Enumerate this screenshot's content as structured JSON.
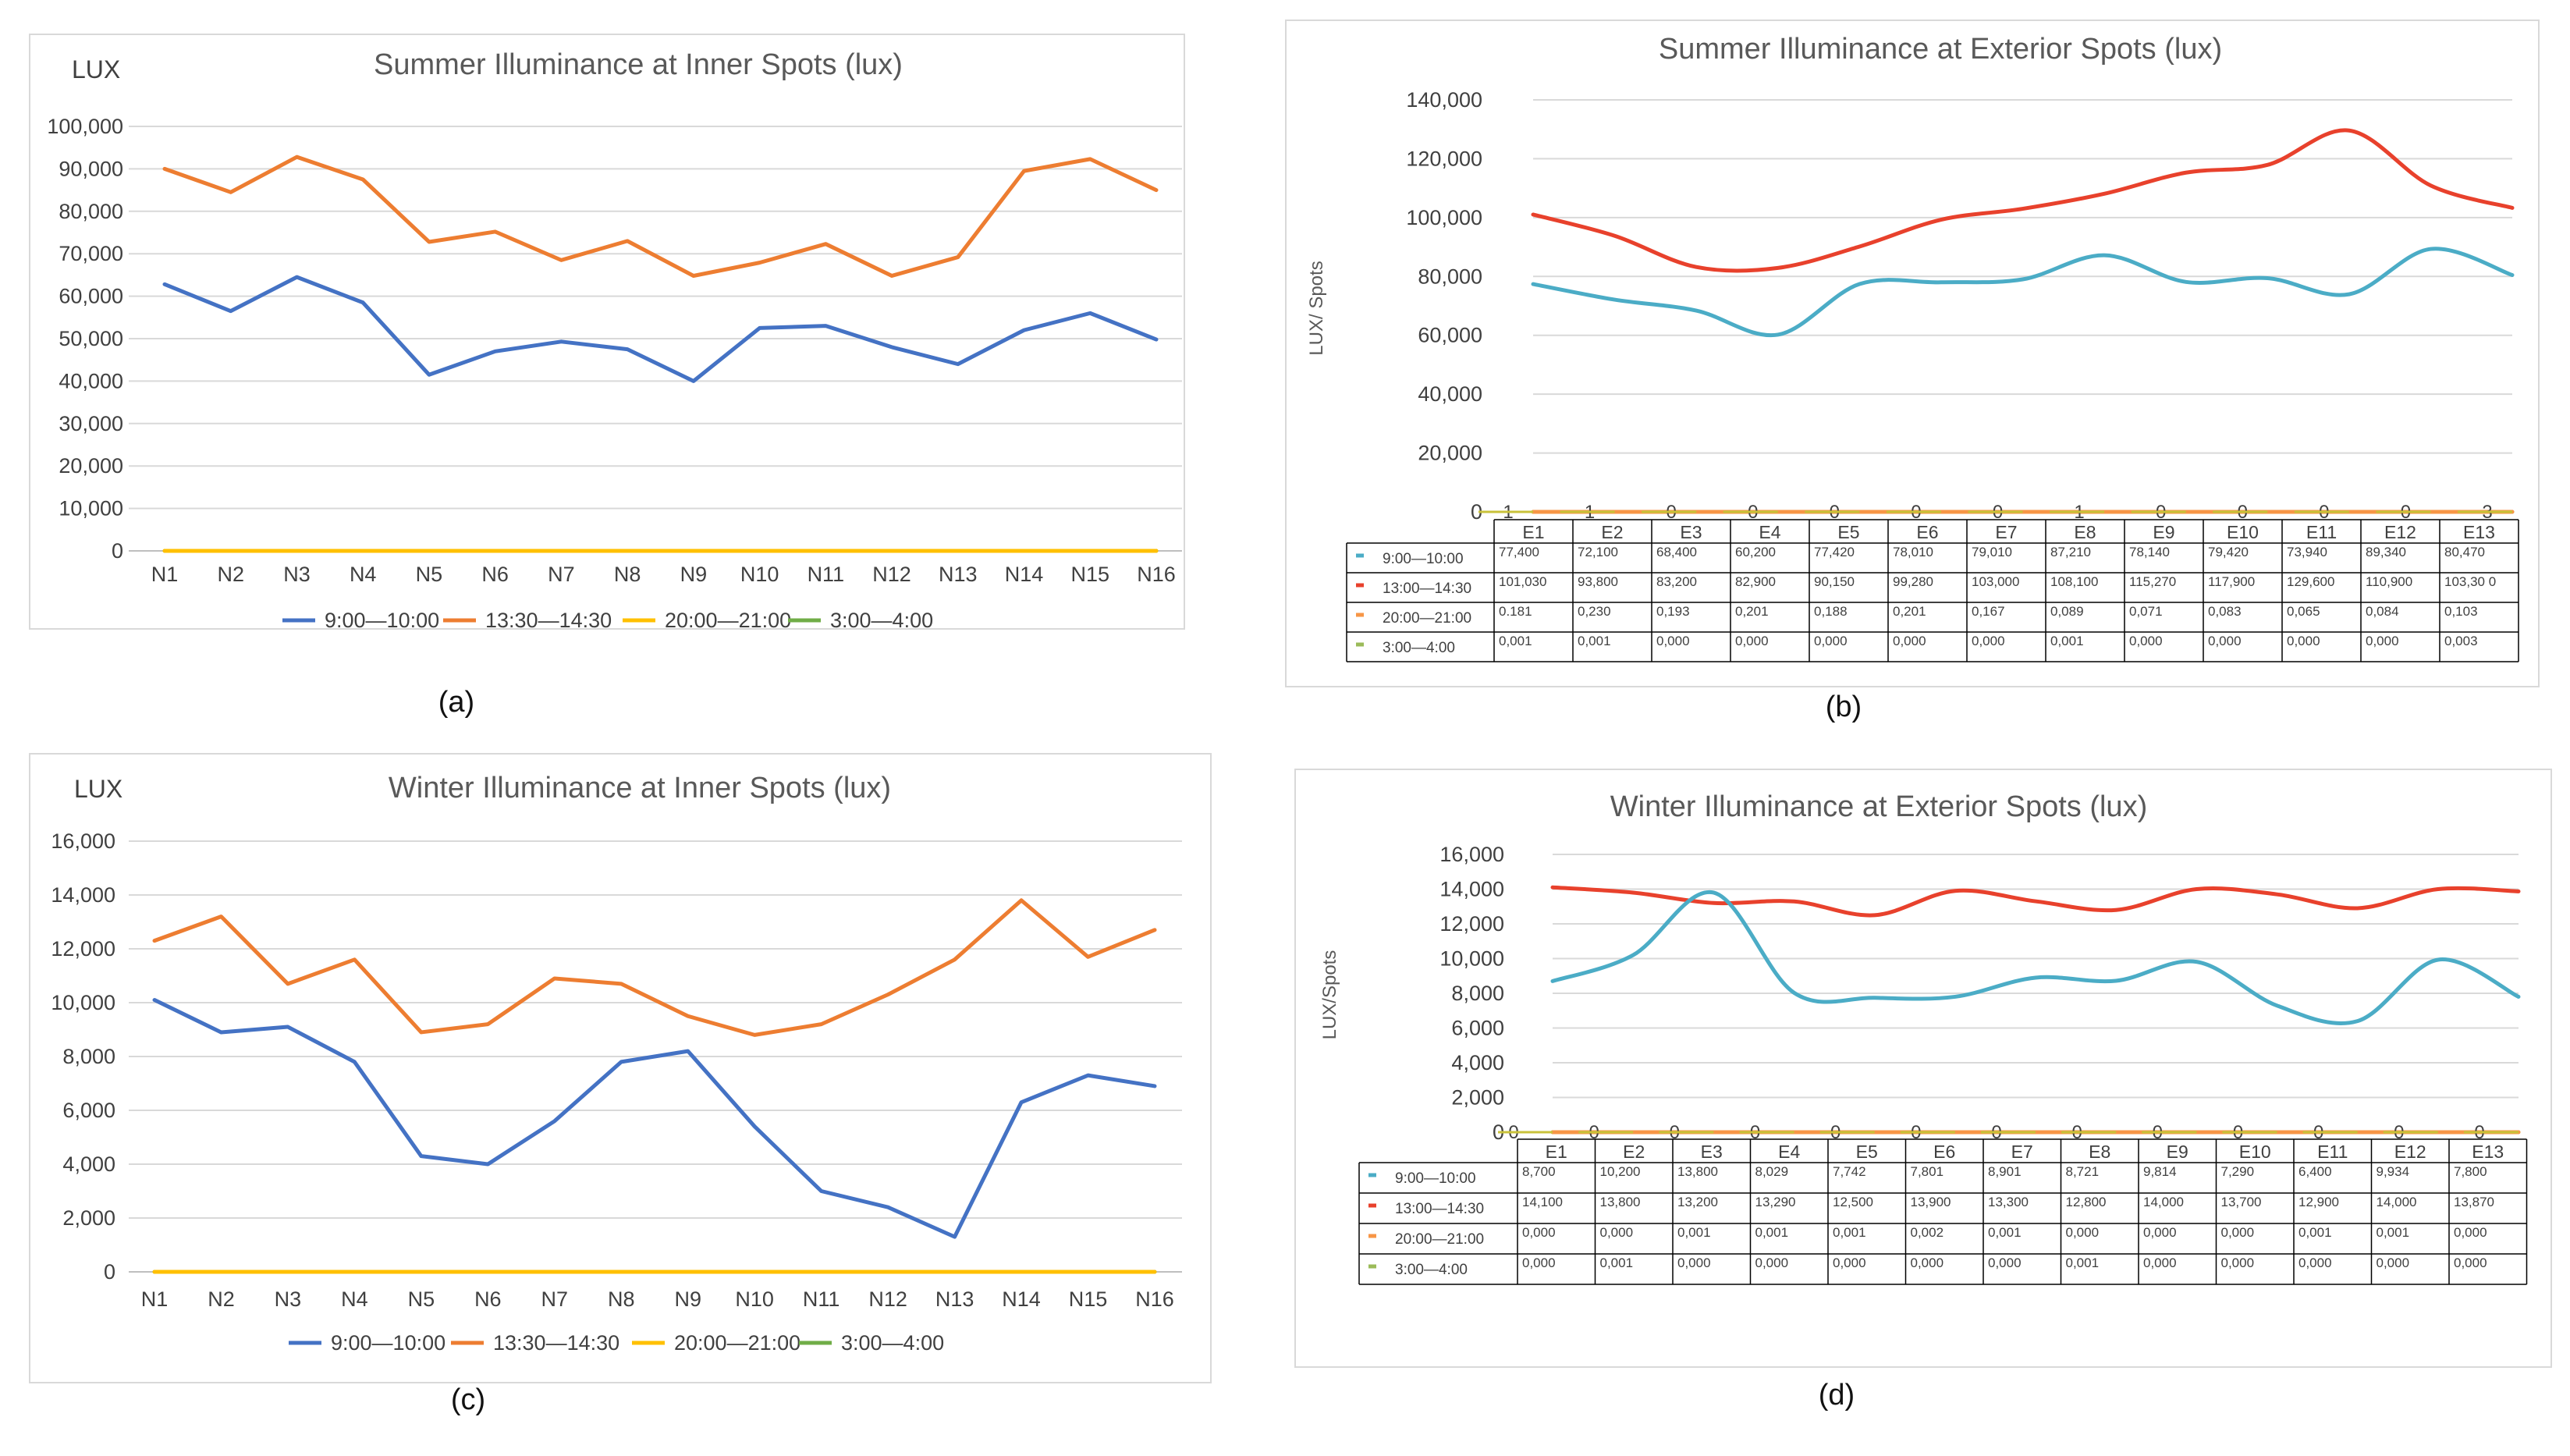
{
  "chart_data": [
    {
      "panel_label": "(a)",
      "type": "line",
      "title": "Summer Illuminance at Inner Spots (lux)",
      "ylabel": "LUX",
      "xlabel": "",
      "categories": [
        "N1",
        "N2",
        "N3",
        "N4",
        "N5",
        "N6",
        "N7",
        "N8",
        "N9",
        "N10",
        "N11",
        "N12",
        "N13",
        "N14",
        "N15",
        "N16"
      ],
      "ylim": [
        0,
        100000
      ],
      "yticks": [
        "0",
        "10,000",
        "20,000",
        "30,000",
        "40,000",
        "50,000",
        "60,000",
        "70,000",
        "80,000",
        "90,000",
        "100,000"
      ],
      "grid": true,
      "legend_position": "bottom",
      "series": [
        {
          "name": "9:00—10:00",
          "color": "#4472c4",
          "values": [
            62800,
            56500,
            64500,
            58500,
            41500,
            47000,
            49300,
            47500,
            40000,
            52500,
            53000,
            48000,
            44000,
            52000,
            56000,
            49800
          ]
        },
        {
          "name": "13:30—14:30",
          "color": "#ed7d31",
          "values": [
            90000,
            84500,
            92800,
            87500,
            72800,
            75200,
            68500,
            73000,
            64800,
            67900,
            72300,
            64800,
            69200,
            89500,
            92300,
            85000
          ]
        },
        {
          "name": "20:00—21:00",
          "color": "#ffc000",
          "values": [
            0,
            0,
            0,
            0,
            0,
            0,
            0,
            0,
            0,
            0,
            0,
            0,
            0,
            0,
            0,
            0
          ]
        },
        {
          "name": "3:00—4:00",
          "color": "#70ad47",
          "values": [
            0,
            0,
            0,
            0,
            0,
            0,
            0,
            0,
            0,
            0,
            0,
            0,
            0,
            0,
            0,
            0
          ]
        }
      ]
    },
    {
      "panel_label": "(b)",
      "type": "line",
      "title": "Summer Illuminance at Exterior Spots (lux)",
      "ylabel": "LUX/ Spots",
      "xlabel": "",
      "categories": [
        "E1",
        "E2",
        "E3",
        "E4",
        "E5",
        "E6",
        "E7",
        "E8",
        "E9",
        "E10",
        "E11",
        "E12",
        "E13"
      ],
      "ylim": [
        0,
        140000
      ],
      "yticks": [
        "0",
        "20,000",
        "40,000",
        "60,000",
        "80,000",
        "100,000",
        "120,000",
        "140,000"
      ],
      "grid": true,
      "legend_position": "data-table",
      "data_labels": [
        "1",
        "1",
        "0",
        "0",
        "0",
        "0",
        "0",
        "1",
        "0",
        "0",
        "0",
        "0",
        "3"
      ],
      "series": [
        {
          "name": "9:00—10:00",
          "color": "#4bacc6",
          "values": [
            77400,
            72100,
            68400,
            60200,
            77420,
            78010,
            79010,
            87210,
            78140,
            79420,
            73940,
            89340,
            80470
          ],
          "table": [
            "77,400",
            "72,100",
            "68,400",
            "60,200",
            "77,420",
            "78,010",
            "79,010",
            "87,210",
            "78,140",
            "79,420",
            "73,940",
            "89,340",
            "80,470"
          ]
        },
        {
          "name": "13:00—14:30",
          "color": "#e8412c",
          "values": [
            101030,
            93800,
            83200,
            82900,
            90150,
            99280,
            103000,
            108100,
            115270,
            117900,
            129600,
            110900,
            103300
          ],
          "table": [
            "101,030",
            "93,800",
            "83,200",
            "82,900",
            "90,150",
            "99,280",
            "103,000",
            "108,100",
            "115,270",
            "117,900",
            "129,600",
            "110,900",
            "103,30 0"
          ]
        },
        {
          "name": "20:00—21:00",
          "color": "#f79646",
          "values": [
            0.181,
            0.23,
            0.193,
            0.201,
            0.188,
            0.201,
            0.167,
            0.089,
            0.071,
            0.083,
            0.065,
            0.084,
            0.103
          ],
          "table": [
            "0.181",
            "0,230",
            "0,193",
            "0,201",
            "0,188",
            "0,201",
            "0,167",
            "0,089",
            "0,071",
            "0,083",
            "0,065",
            "0,084",
            "0,103"
          ]
        },
        {
          "name": "3:00—4:00",
          "color": "#9bbb59",
          "values": [
            0.001,
            0.001,
            0,
            0,
            0,
            0,
            0,
            0.001,
            0,
            0,
            0,
            0,
            0.003
          ],
          "table": [
            "0,001",
            "0,001",
            "0,000",
            "0,000",
            "0,000",
            "0,000",
            "0,000",
            "0,001",
            "0,000",
            "0,000",
            "0,000",
            "0,000",
            "0,003"
          ]
        }
      ]
    },
    {
      "panel_label": "(c)",
      "type": "line",
      "title": "Winter Illuminance at Inner Spots (lux)",
      "ylabel": "LUX",
      "xlabel": "",
      "categories": [
        "N1",
        "N2",
        "N3",
        "N4",
        "N5",
        "N6",
        "N7",
        "N8",
        "N9",
        "N10",
        "N11",
        "N12",
        "N13",
        "N14",
        "N15",
        "N16"
      ],
      "ylim": [
        0,
        16000
      ],
      "yticks": [
        "0",
        "2,000",
        "4,000",
        "6,000",
        "8,000",
        "10,000",
        "12,000",
        "14,000",
        "16,000"
      ],
      "grid": true,
      "legend_position": "bottom",
      "series": [
        {
          "name": "9:00—10:00",
          "color": "#4472c4",
          "values": [
            10100,
            8900,
            9100,
            7800,
            4300,
            4000,
            5600,
            7800,
            8200,
            5400,
            3000,
            2400,
            1300,
            6300,
            7300,
            6900
          ]
        },
        {
          "name": "13:30—14:30",
          "color": "#ed7d31",
          "values": [
            12300,
            13200,
            10700,
            11600,
            8900,
            9200,
            10900,
            10700,
            9500,
            8800,
            9200,
            10300,
            11600,
            13800,
            11700,
            12700
          ]
        },
        {
          "name": "20:00—21:00",
          "color": "#ffc000",
          "values": [
            0,
            0,
            0,
            0,
            0,
            0,
            0,
            0,
            0,
            0,
            0,
            0,
            0,
            0,
            0,
            0
          ]
        },
        {
          "name": "3:00—4:00",
          "color": "#70ad47",
          "values": [
            0,
            0,
            0,
            0,
            0,
            0,
            0,
            0,
            0,
            0,
            0,
            0,
            0,
            0,
            0,
            0
          ]
        }
      ]
    },
    {
      "panel_label": "(d)",
      "type": "line",
      "title": "Winter Illuminance at Exterior Spots (lux)",
      "ylabel": "LUX/Spots",
      "xlabel": "",
      "categories": [
        "E1",
        "E2",
        "E3",
        "E4",
        "E5",
        "E6",
        "E7",
        "E8",
        "E9",
        "E10",
        "E11",
        "E12",
        "E13"
      ],
      "ylim": [
        0,
        16000
      ],
      "yticks": [
        "0",
        "2,000",
        "4,000",
        "6,000",
        "8,000",
        "10,000",
        "12,000",
        "14,000",
        "16,000"
      ],
      "grid": true,
      "legend_position": "data-table",
      "data_labels": [
        "0",
        "0",
        "0",
        "0",
        "0",
        "0",
        "0",
        "0",
        "0",
        "0",
        "0",
        "0",
        "0"
      ],
      "series": [
        {
          "name": "9:00—10:00",
          "color": "#4bacc6",
          "values": [
            8700,
            10200,
            13800,
            8029,
            7742,
            7801,
            8901,
            8721,
            9814,
            7290,
            6400,
            9934,
            7800
          ],
          "table": [
            "8,700",
            "10,200",
            "13,800",
            "8,029",
            "7,742",
            "7,801",
            "8,901",
            "8,721",
            "9,814",
            "7,290",
            "6,400",
            "9,934",
            "7,800"
          ]
        },
        {
          "name": "13:00—14:30",
          "color": "#e8412c",
          "values": [
            14100,
            13800,
            13200,
            13290,
            12500,
            13900,
            13300,
            12800,
            14000,
            13700,
            12900,
            14000,
            13870
          ],
          "table": [
            "14,100",
            "13,800",
            "13,200",
            "13,290",
            "12,500",
            "13,900",
            "13,300",
            "12,800",
            "14,000",
            "13,700",
            "12,900",
            "14,000",
            "13,870"
          ]
        },
        {
          "name": "20:00—21:00",
          "color": "#f79646",
          "values": [
            0,
            0,
            0.001,
            0.001,
            0.001,
            0.002,
            0.001,
            0,
            0,
            0,
            0.001,
            0.001,
            0
          ],
          "table": [
            "0,000",
            "0,000",
            "0,001",
            "0,001",
            "0,001",
            "0,002",
            "0,001",
            "0,000",
            "0,000",
            "0,000",
            "0,001",
            "0,001",
            "0,000"
          ]
        },
        {
          "name": "3:00—4:00",
          "color": "#9bbb59",
          "values": [
            0,
            0.001,
            0,
            0,
            0,
            0,
            0,
            0.001,
            0,
            0,
            0,
            0,
            0
          ],
          "table": [
            "0,000",
            "0,001",
            "0,000",
            "0,000",
            "0,000",
            "0,000",
            "0,000",
            "0,001",
            "0,000",
            "0,000",
            "0,000",
            "0,000",
            "0,000"
          ]
        }
      ]
    }
  ]
}
